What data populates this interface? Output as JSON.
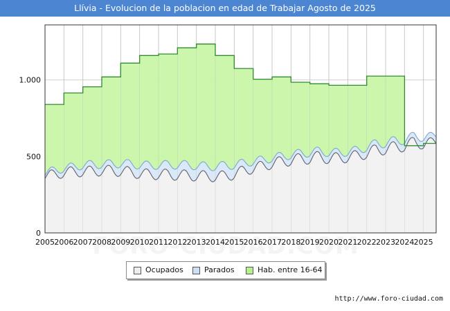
{
  "title": "Llívia - Evolucion de la poblacion en edad de Trabajar Agosto de 2025",
  "watermark": "FORO-CIUDAD.COM",
  "source": "http://www.foro-ciudad.com",
  "colors": {
    "title_bg": "#4c86d3",
    "ocupados_fill": "#f2f2f2",
    "ocupados_line": "#606070",
    "parados_fill": "#d9e9f8",
    "parados_line": "#7ea6d4",
    "hab_fill": "#c8f5a8",
    "hab_line": "#2e8b2e",
    "grid": "#d0d0d0"
  },
  "legend": [
    {
      "label": "Ocupados",
      "color": "#eeeeee"
    },
    {
      "label": "Parados",
      "color": "#cce0f5"
    },
    {
      "label": "Hab. entre 16-64",
      "color": "#b9f08e"
    }
  ],
  "chart_data": {
    "type": "area",
    "title": "Llívia - Evolucion de la poblacion en edad de Trabajar Agosto de 2025",
    "x_ticks": [
      "2005",
      "2006",
      "2007",
      "2008",
      "2009",
      "2010",
      "2011",
      "2012",
      "2013",
      "2014",
      "2015",
      "2016",
      "2017",
      "2018",
      "2019",
      "2020",
      "2021",
      "2022",
      "2023",
      "2024",
      "2025"
    ],
    "y_ticks": [
      {
        "value": 0,
        "label": "0"
      },
      {
        "value": 500,
        "label": "500"
      },
      {
        "value": 1000,
        "label": "1.000"
      }
    ],
    "xlim": [
      2005,
      2025.67
    ],
    "ylim": [
      0,
      1360
    ],
    "grid": true,
    "legend_position": "bottom",
    "series": [
      {
        "name": "Hab. entre 16-64",
        "kind": "annual_step",
        "years": [
          2005,
          2006,
          2007,
          2008,
          2009,
          2010,
          2011,
          2012,
          2013,
          2014,
          2015,
          2016,
          2017,
          2018,
          2019,
          2020,
          2021,
          2022,
          2023,
          2024,
          2025
        ],
        "values": [
          840,
          915,
          955,
          1020,
          1110,
          1160,
          1170,
          1210,
          1235,
          1160,
          1075,
          1005,
          1020,
          985,
          975,
          965,
          965,
          1025,
          1025,
          570,
          585
        ]
      },
      {
        "name": "Parados",
        "kind": "monthly_total",
        "anchors_year": [
          2005,
          2005.5,
          2006,
          2006.5,
          2007,
          2007.5,
          2008,
          2008.5,
          2009,
          2009.5,
          2010,
          2010.5,
          2011,
          2011.5,
          2012,
          2012.5,
          2013,
          2013.5,
          2014,
          2014.5,
          2015,
          2015.5,
          2016,
          2016.5,
          2017,
          2017.5,
          2018,
          2018.5,
          2019,
          2019.5,
          2020,
          2020.5,
          2021,
          2021.5,
          2022,
          2022.5,
          2023,
          2023.5,
          2024,
          2024.5,
          2025,
          2025.67
        ],
        "anchors_value": [
          390,
          410,
          420,
          435,
          440,
          450,
          445,
          455,
          450,
          455,
          440,
          445,
          440,
          450,
          440,
          450,
          435,
          440,
          430,
          445,
          440,
          460,
          465,
          480,
          485,
          505,
          505,
          525,
          520,
          540,
          520,
          530,
          525,
          545,
          555,
          590,
          580,
          610,
          600,
          640,
          620,
          640
        ]
      },
      {
        "name": "Ocupados",
        "kind": "monthly",
        "anchors_year": [
          2005,
          2005.5,
          2006,
          2006.5,
          2007,
          2007.5,
          2008,
          2008.5,
          2009,
          2009.5,
          2010,
          2010.5,
          2011,
          2011.5,
          2012,
          2012.5,
          2013,
          2013.5,
          2014,
          2014.5,
          2015,
          2015.5,
          2016,
          2016.5,
          2017,
          2017.5,
          2018,
          2018.5,
          2019,
          2019.5,
          2020,
          2020.5,
          2021,
          2021.5,
          2022,
          2022.5,
          2023,
          2023.5,
          2024,
          2024.5,
          2025,
          2025.67
        ],
        "anchors_value": [
          375,
          380,
          395,
          400,
          400,
          405,
          405,
          410,
          400,
          400,
          385,
          385,
          380,
          385,
          375,
          380,
          370,
          375,
          365,
          375,
          380,
          410,
          420,
          440,
          450,
          470,
          470,
          490,
          480,
          505,
          480,
          495,
          490,
          510,
          515,
          550,
          540,
          570,
          560,
          600,
          575,
          600
        ],
        "seasonal_amplitude": 38
      }
    ]
  }
}
